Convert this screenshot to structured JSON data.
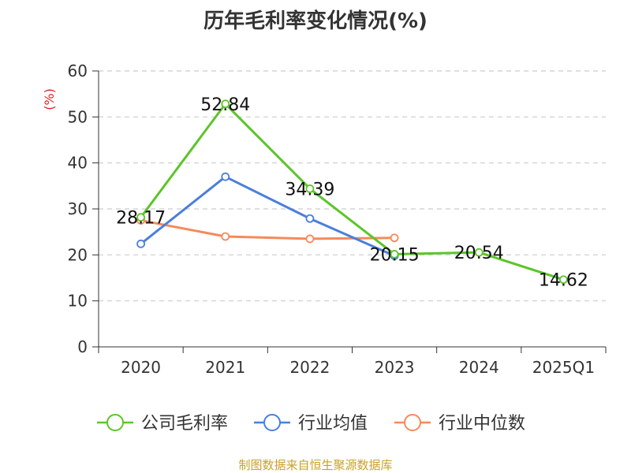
{
  "chart_data": {
    "type": "line",
    "title": "历年毛利率变化情况(%)",
    "ylabel": "(%)",
    "xlabel": "",
    "categories": [
      "2020",
      "2021",
      "2022",
      "2023",
      "2024",
      "2025Q1"
    ],
    "ylim": [
      0,
      60
    ],
    "yticks": [
      0,
      10,
      20,
      30,
      40,
      50,
      60
    ],
    "grid": true,
    "legend_position": "bottom",
    "series": [
      {
        "name": "公司毛利率",
        "color": "#5cc529",
        "values": [
          28.17,
          52.84,
          34.39,
          20.15,
          20.54,
          14.62
        ],
        "labels": [
          "28.17",
          "52.84",
          "34.39",
          "20.15",
          "20.54",
          "14.62"
        ]
      },
      {
        "name": "行业均值",
        "color": "#4a7fdc",
        "values": [
          22.4,
          37.0,
          27.9,
          19.8,
          null,
          null
        ]
      },
      {
        "name": "行业中位数",
        "color": "#f58a5a",
        "values": [
          27.5,
          24.0,
          23.5,
          23.7,
          null,
          null
        ]
      }
    ],
    "source": "制图数据来自恒生聚源数据库"
  }
}
